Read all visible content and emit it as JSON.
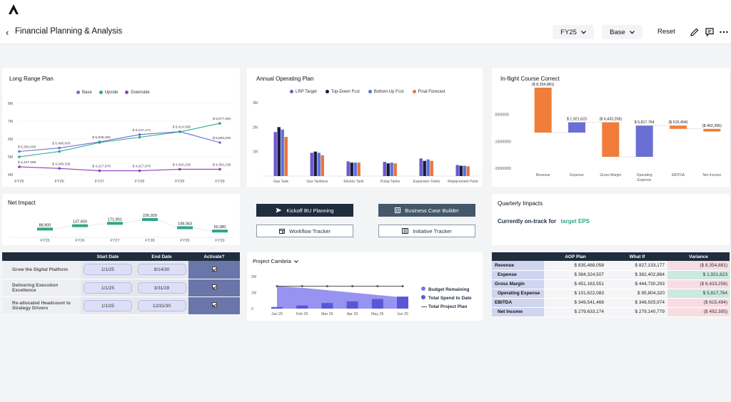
{
  "header": {
    "title": "Financial Planning & Analysis",
    "fiscal_year": "FY25",
    "scenario": "Base",
    "reset_label": "Reset"
  },
  "panels": {
    "long_range": "Long Range Plan",
    "annual_operating": "Annual Operating Plan",
    "inflight": "In-flight Course Correct",
    "net_impact": "Net Impact",
    "quarterly": "Quarterly Impacts",
    "project": "Project Cambria"
  },
  "long_range_chart": {
    "legend": [
      "Base",
      "Upside",
      "Downside"
    ],
    "colors": [
      "#6a6fd6",
      "#2aa88a",
      "#8e3fb8"
    ],
    "x": [
      "FY25",
      "FY26",
      "FY27",
      "FY28",
      "FY29",
      "FY30"
    ],
    "yticks": [
      "8M",
      "7M",
      "6M",
      "5M",
      "4M"
    ],
    "ylim": [
      4,
      8
    ],
    "series": [
      {
        "name": "Base",
        "values": [
          5.3,
          5.496,
          5.838,
          6.247,
          6.414,
          5.8
        ]
      },
      {
        "name": "Upside",
        "values": [
          5.0,
          5.3,
          5.8,
          6.1,
          6.4,
          6.877
        ]
      },
      {
        "name": "Downside",
        "values": [
          4.437,
          4.348,
          4.217,
          4.217,
          4.302,
          4.302
        ]
      }
    ],
    "labels": [
      {
        "text": "$ 5,300,000",
        "series": 0,
        "i": 0
      },
      {
        "text": "$ 5,496,000",
        "series": 0,
        "i": 1
      },
      {
        "text": "$ 5,838,480",
        "series": 0,
        "i": 2
      },
      {
        "text": "$ 6,247,174",
        "series": 0,
        "i": 3
      },
      {
        "text": "$ 6,414,586",
        "series": 0,
        "i": 4
      },
      {
        "text": "$ 5,800,000",
        "series": 0,
        "i": 5
      },
      {
        "text": "$ 6,877,094",
        "series": 1,
        "i": 5
      },
      {
        "text": "$ 4,437,069",
        "series": 2,
        "i": 0
      },
      {
        "text": "$ 4,348,328",
        "series": 2,
        "i": 1
      },
      {
        "text": "$ 4,217,878",
        "series": 2,
        "i": 2
      },
      {
        "text": "$ 4,217,878",
        "series": 2,
        "i": 3
      },
      {
        "text": "$ 4,302,236",
        "series": 2,
        "i": 4
      },
      {
        "text": "$ 4,302,236",
        "series": 2,
        "i": 5
      }
    ]
  },
  "aop_chart": {
    "type": "bar",
    "legend": [
      "LRP Target",
      "Top-Down Fcst",
      "Bottom-Up Fcst",
      "Final Forecast"
    ],
    "colors": [
      "#6a5acd",
      "#1a1a40",
      "#5a72e0",
      "#e8743b"
    ],
    "categories": [
      "Gas Tank",
      "Gas Tankless",
      "Electric Tank",
      "Pump Tanks",
      "Expansion Tanks",
      "Replacement Parts"
    ],
    "yticks": [
      "3M",
      "2M",
      "1M",
      "0"
    ],
    "ylim": [
      0,
      3
    ],
    "series": [
      {
        "name": "LRP Target",
        "values": [
          1.8,
          0.95,
          0.6,
          0.58,
          0.72,
          0.45
        ]
      },
      {
        "name": "Top-Down Fcst",
        "values": [
          2.0,
          1.0,
          0.55,
          0.52,
          0.62,
          0.42
        ]
      },
      {
        "name": "Bottom-Up Fcst",
        "values": [
          1.9,
          0.95,
          0.55,
          0.55,
          0.68,
          0.42
        ]
      },
      {
        "name": "Final Forecast",
        "values": [
          1.6,
          0.85,
          0.55,
          0.52,
          0.62,
          0.4
        ]
      }
    ]
  },
  "waterfall_chart": {
    "type": "bar",
    "categories": [
      "Revenue",
      "Expense",
      "Gross Margin",
      "Operating Expense",
      "EBITDA",
      "Net Income"
    ],
    "yticks": [
      "-5000000",
      "-10000000",
      "-15000000"
    ],
    "ylim": [
      -17500000,
      0
    ],
    "bars": [
      {
        "start": 0,
        "end": -8354881,
        "color": "#f07e3a",
        "label": "($ 8,354,881)"
      },
      {
        "start": -8354881,
        "end": -6433258,
        "color": "#6a6fd6",
        "label": "$ 1,921,623"
      },
      {
        "start": -6433258,
        "end": -12866516,
        "color": "#f07e3a",
        "label": "($ 6,433,258)"
      },
      {
        "start": -12866516,
        "end": -7048752,
        "color": "#6a6fd6",
        "label": "$ 5,817,764"
      },
      {
        "start": -7048752,
        "end": -7664246,
        "color": "#f07e3a",
        "label": "($ 615,494)"
      },
      {
        "start": -7664246,
        "end": -8156641,
        "color": "#f07e3a",
        "label": "($ 492,395)"
      }
    ]
  },
  "net_impact_chart": {
    "x": [
      "FY25",
      "FY26",
      "FY27",
      "FY28",
      "FY29",
      "FY30"
    ],
    "values": [
      88900,
      137650,
      171901,
      226929,
      108043,
      60380
    ],
    "labels": [
      "88,900",
      "137,650",
      "171,901",
      "226,929",
      "108,043",
      "60,380"
    ],
    "color": "#2aa88a"
  },
  "actions": {
    "kickoff": "Kickoff BU Planning",
    "business_case": "Business Case Builder",
    "workflow": "Workflow Tracker",
    "initiative": "Initiative Tracker"
  },
  "quarterly": {
    "text": "Currently on-track for",
    "highlight": "target EPS",
    "highlight_color": "#2aa88a"
  },
  "activation_table": {
    "headers": [
      "Start Date",
      "End Date",
      "Activate?"
    ],
    "rows": [
      {
        "label": "Grow the Digital Platform",
        "start": "1/1/25",
        "end": "8/14/30"
      },
      {
        "label": "Delivering Execution Excellence",
        "start": "1/1/25",
        "end": "3/31/28"
      },
      {
        "label": "Re-allocated Headcount to Strategy Drivers",
        "start": "1/1/25",
        "end": "12/31/30"
      }
    ]
  },
  "project_chart": {
    "dropdown": "Project Cambria",
    "x": [
      "Jan 25",
      "Feb 25",
      "Mar 25",
      "Apr 25",
      "May 25",
      "Jun 25"
    ],
    "yticks": [
      "2M",
      "1M",
      "0"
    ],
    "ylim": [
      0,
      2
    ],
    "legend": [
      "Budget Remaining",
      "Total Spend to Date",
      "Total Project Plan"
    ],
    "colors": [
      "#7c78e6",
      "#5a57d6",
      "#555555"
    ],
    "budget_remaining": [
      1.4,
      1.3,
      1.15,
      1.0,
      0.85,
      0.7
    ],
    "total_spend": [
      0.1,
      0.2,
      0.35,
      0.45,
      0.6,
      0.75
    ],
    "total_plan": [
      1.4,
      1.4,
      1.4,
      1.4,
      1.4,
      1.4
    ]
  },
  "aop_table": {
    "headers": [
      "AOP Plan",
      "What If",
      "Variance"
    ],
    "rows": [
      {
        "label": "Revenue",
        "aop": "$ 835,488,058",
        "whatif": "$ 827,133,177",
        "variance": "($ 8,354,881)",
        "sign": "neg"
      },
      {
        "label": "Expense",
        "aop": "$ 384,324,507",
        "whatif": "$ 382,402,884",
        "variance": "$ 1,921,623",
        "sign": "pos"
      },
      {
        "label": "Gross Margin",
        "aop": "$ 451,163,551",
        "whatif": "$ 444,730,293",
        "variance": "($ 6,433,258)",
        "sign": "neg"
      },
      {
        "label": "Operating Expense",
        "aop": "$ 101,622,083",
        "whatif": "$ 95,804,320",
        "variance": "$ 5,817,764",
        "sign": "pos"
      },
      {
        "label": "EBITDA",
        "aop": "$ 349,541,468",
        "whatif": "$ 348,925,974",
        "variance": "($ 615,494)",
        "sign": "neg"
      },
      {
        "label": "Net Income",
        "aop": "$ 279,633,174",
        "whatif": "$ 279,140,779",
        "variance": "($ 492,395)",
        "sign": "neg"
      }
    ]
  }
}
